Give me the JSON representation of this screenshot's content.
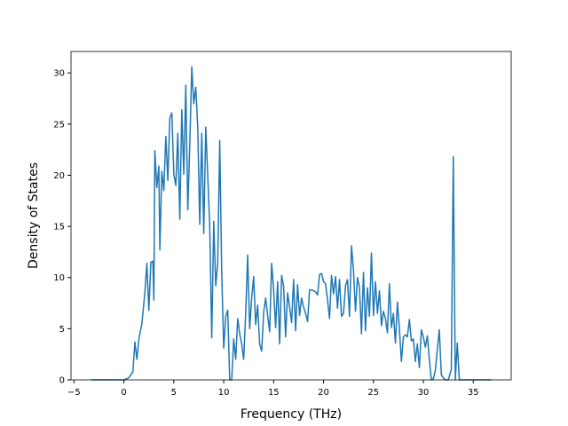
{
  "chart_data": {
    "type": "line",
    "xlabel": "Frequency (THz)",
    "ylabel": "Density of States",
    "x": [
      -3.3,
      0,
      0.5,
      0.9,
      1.1,
      1.3,
      1.5,
      1.8,
      2.1,
      2.3,
      2.5,
      2.7,
      2.9,
      3.0,
      3.1,
      3.3,
      3.5,
      3.6,
      3.8,
      4.0,
      4.2,
      4.4,
      4.6,
      4.8,
      5.0,
      5.2,
      5.4,
      5.6,
      5.8,
      6.0,
      6.2,
      6.4,
      6.6,
      6.8,
      7.0,
      7.2,
      7.4,
      7.6,
      7.8,
      8.0,
      8.2,
      8.4,
      8.6,
      8.8,
      9.0,
      9.2,
      9.4,
      9.6,
      9.8,
      10.0,
      10.2,
      10.4,
      10.6,
      10.8,
      11.0,
      11.2,
      11.4,
      11.6,
      11.8,
      12.0,
      12.2,
      12.4,
      12.6,
      12.8,
      13.0,
      13.2,
      13.4,
      13.6,
      13.8,
      14.0,
      14.2,
      14.4,
      14.6,
      14.8,
      15.0,
      15.2,
      15.4,
      15.6,
      15.8,
      16.0,
      16.2,
      16.4,
      16.6,
      16.8,
      17.0,
      17.2,
      17.4,
      17.6,
      17.8,
      18.0,
      18.2,
      18.4,
      18.6,
      18.8,
      19.0,
      19.2,
      19.4,
      19.6,
      19.8,
      20.0,
      20.2,
      20.4,
      20.6,
      20.8,
      21.0,
      21.2,
      21.4,
      21.6,
      21.8,
      22.0,
      22.2,
      22.4,
      22.6,
      22.8,
      23.0,
      23.2,
      23.4,
      23.6,
      23.8,
      24.0,
      24.2,
      24.4,
      24.6,
      24.8,
      25.0,
      25.2,
      25.4,
      25.6,
      25.8,
      26.0,
      26.2,
      26.4,
      26.6,
      26.8,
      27.0,
      27.2,
      27.4,
      27.6,
      27.8,
      28.0,
      28.2,
      28.4,
      28.6,
      28.8,
      29.0,
      29.2,
      29.4,
      29.6,
      29.8,
      30.0,
      30.2,
      30.4,
      30.6,
      30.8,
      31.0,
      31.2,
      31.4,
      31.6,
      31.8,
      32.0,
      32.2,
      32.5,
      32.8,
      33.0,
      33.2,
      33.4,
      33.6,
      34.0,
      36.8
    ],
    "series": [
      {
        "name": "DOS",
        "color": "#1f77b4",
        "values": [
          0,
          0,
          0.2,
          0.8,
          3.7,
          2.0,
          4.0,
          5.5,
          8.5,
          11.4,
          6.8,
          11.5,
          11.6,
          7.8,
          22.4,
          18.8,
          20.9,
          12.7,
          20.4,
          18.5,
          23.8,
          19.5,
          25.6,
          26.1,
          20.1,
          19.0,
          24.1,
          15.7,
          26.4,
          20.1,
          28.8,
          16.6,
          23.0,
          30.6,
          27.0,
          28.6,
          24.6,
          15.2,
          24.1,
          14.3,
          24.7,
          19.9,
          15.0,
          4.1,
          15.5,
          9.2,
          11.4,
          23.4,
          10.5,
          3.1,
          6.2,
          6.8,
          0.0,
          0.0,
          4.0,
          2.0,
          6.0,
          4.5,
          3.5,
          2.0,
          6.5,
          12.2,
          5.0,
          8.0,
          10.1,
          5.4,
          7.3,
          3.5,
          2.8,
          6.6,
          8.0,
          6.3,
          4.7,
          11.4,
          8.8,
          5.1,
          9.6,
          3.5,
          10.2,
          9.2,
          4.2,
          8.5,
          7.1,
          5.6,
          9.8,
          4.8,
          9.3,
          6.3,
          8.0,
          7.1,
          6.5,
          5.7,
          8.8,
          8.8,
          8.7,
          8.6,
          8.3,
          10.3,
          10.4,
          9.6,
          9.4,
          7.8,
          6.0,
          10.2,
          8.4,
          10.1,
          7.0,
          9.8,
          6.2,
          6.5,
          9.2,
          9.8,
          6.2,
          13.1,
          10.7,
          6.7,
          10.0,
          9.0,
          4.5,
          10.5,
          4.8,
          9.0,
          6.2,
          12.4,
          6.3,
          9.6,
          6.5,
          8.7,
          5.3,
          6.7,
          6.0,
          4.6,
          9.4,
          5.1,
          6.5,
          3.6,
          7.6,
          5.0,
          1.8,
          4.2,
          4.4,
          4.2,
          5.9,
          3.8,
          4.0,
          1.8,
          3.5,
          1.2,
          4.9,
          4.2,
          3.2,
          4.3,
          2.0,
          0.0,
          0.1,
          0.9,
          3.0,
          4.9,
          0.5,
          0.2,
          0.0,
          0.0,
          1.0,
          21.8,
          0.0,
          3.6,
          0.0,
          0.0,
          0
        ]
      }
    ],
    "xlim": [
      -5.3,
      38.8
    ],
    "xticks": [
      {
        "value": -5,
        "label": "−5"
      },
      0,
      5,
      10,
      15,
      20,
      25,
      30,
      35
    ],
    "ylim": [
      0,
      32.1
    ],
    "yticks": [
      0,
      5,
      10,
      15,
      20,
      25,
      30
    ],
    "grid": false
  }
}
